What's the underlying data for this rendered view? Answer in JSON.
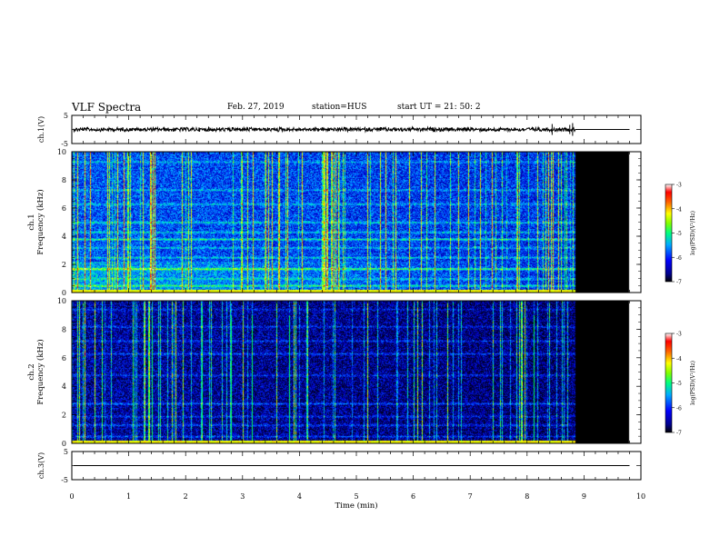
{
  "header": {
    "title": "VLF Spectra",
    "date": "Feb. 27, 2019",
    "station": "station=HUS",
    "start": "start  UT =  21: 50: 2"
  },
  "chart_data": [
    {
      "type": "line",
      "panel": "ch.1 waveform",
      "ylabel": "ch.1(V)",
      "ylim": [
        -5,
        5
      ],
      "yticks": [
        "5",
        "-5"
      ],
      "x": [
        0,
        8.85,
        9.8
      ],
      "values": [
        0,
        0,
        0
      ],
      "note_visible": "noisy trace near 0 V until ~8.85 min, flat afterwards"
    },
    {
      "type": "heatmap",
      "panel": "ch.1 spectrogram",
      "ylabel": "ch.1\nFrequency (kHz)",
      "ylim": [
        0,
        10
      ],
      "yticks": [
        "0",
        "2",
        "4",
        "6",
        "8",
        "10"
      ],
      "xlim": [
        0,
        10
      ],
      "data_end_min": 8.85,
      "black_fill_end_min": 9.8,
      "bright_bands_khz": [
        0.5,
        1.0,
        1.7,
        2.5,
        3.2,
        3.8,
        4.3,
        5.0,
        6.3,
        7.3,
        9.3
      ],
      "colorbar": {
        "label": "log(PSD)(V²/Hz)",
        "ticks": [
          "-3",
          "-4",
          "-5",
          "-6",
          "-7"
        ],
        "range": [
          -7,
          -3
        ]
      }
    },
    {
      "type": "heatmap",
      "panel": "ch.2 spectrogram",
      "ylabel": "ch.2\nFrequency (kHz)",
      "ylim": [
        0,
        10
      ],
      "yticks": [
        "0",
        "2",
        "4",
        "6",
        "8",
        "10"
      ],
      "xlim": [
        0,
        10
      ],
      "data_end_min": 8.85,
      "black_fill_end_min": 9.8,
      "bright_bands_khz": [
        0.5,
        1.3,
        1.9,
        2.8,
        4.8,
        6.3,
        7.2,
        8.2,
        9.4
      ],
      "colorbar": {
        "label": "log(PSD)(V²/Hz)",
        "ticks": [
          "-3",
          "-4",
          "-5",
          "-6",
          "-7"
        ],
        "range": [
          -7,
          -3
        ]
      }
    },
    {
      "type": "line",
      "panel": "ch.3 waveform",
      "ylabel": "ch.3(V)",
      "ylim": [
        -5,
        5
      ],
      "yticks": [
        "5",
        "-5"
      ],
      "x": [
        0,
        9.8
      ],
      "values": [
        0,
        0
      ]
    }
  ],
  "xaxis": {
    "label": "Time (min)",
    "ticks": [
      "0",
      "1",
      "2",
      "3",
      "4",
      "5",
      "6",
      "7",
      "8",
      "9",
      "10"
    ],
    "xlim": [
      0,
      10
    ]
  },
  "colors": {
    "colormap": [
      "#000000",
      "#00003c",
      "#0000c8",
      "#0050ff",
      "#00c8ff",
      "#00ff64",
      "#c8ff00",
      "#ffff00",
      "#ff6400",
      "#ff0000",
      "#ffffff"
    ]
  }
}
